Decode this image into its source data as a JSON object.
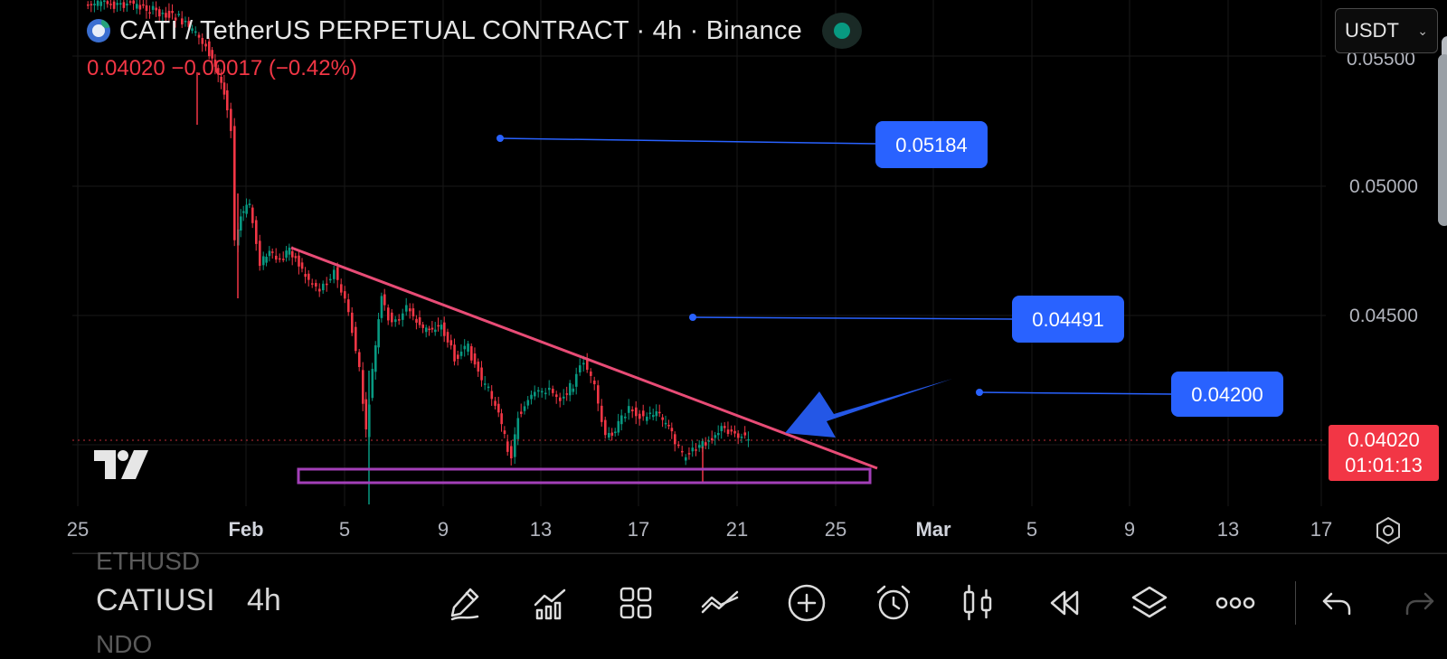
{
  "header": {
    "title": "CATI / TetherUS PERPETUAL CONTRACT · 4h · Binance",
    "price_change": "0.04020 −0.00017 (−0.42%)",
    "currency": "USDT"
  },
  "price_axis": {
    "labels": [
      "0.05500",
      "0.05000",
      "0.04500"
    ],
    "current_price": "0.04020",
    "countdown": "01:01:13"
  },
  "time_axis": {
    "labels": [
      "25",
      "Feb",
      "5",
      "9",
      "13",
      "17",
      "21",
      "25",
      "Mar",
      "5",
      "9",
      "13",
      "17"
    ]
  },
  "annotations": {
    "levels": [
      "0.05184",
      "0.04491",
      "0.04200"
    ],
    "triangle_resistance": "descending",
    "support_zone": [
      0.0394,
      0.0399
    ],
    "arrow": "pointing to triangle apex"
  },
  "colors": {
    "up": "#089981",
    "down": "#f23645",
    "trendline": "#e84c76",
    "support_box": "#a33fb8",
    "label_blue": "#2962ff",
    "arrow": "#2457e6"
  },
  "bottom_bar": {
    "watchlist": [
      "ETHUSD",
      "CATIUSDT",
      "NDO"
    ],
    "symbol": "CATIUSI",
    "timeframe": "4h",
    "tools": [
      "pencil-icon",
      "chart-bars-icon",
      "grid-icon",
      "indicator-icon",
      "plus-circle-icon",
      "alarm-icon",
      "candles-icon",
      "rewind-icon",
      "layers-icon",
      "more-icon",
      "undo-icon",
      "redo-icon"
    ]
  }
}
